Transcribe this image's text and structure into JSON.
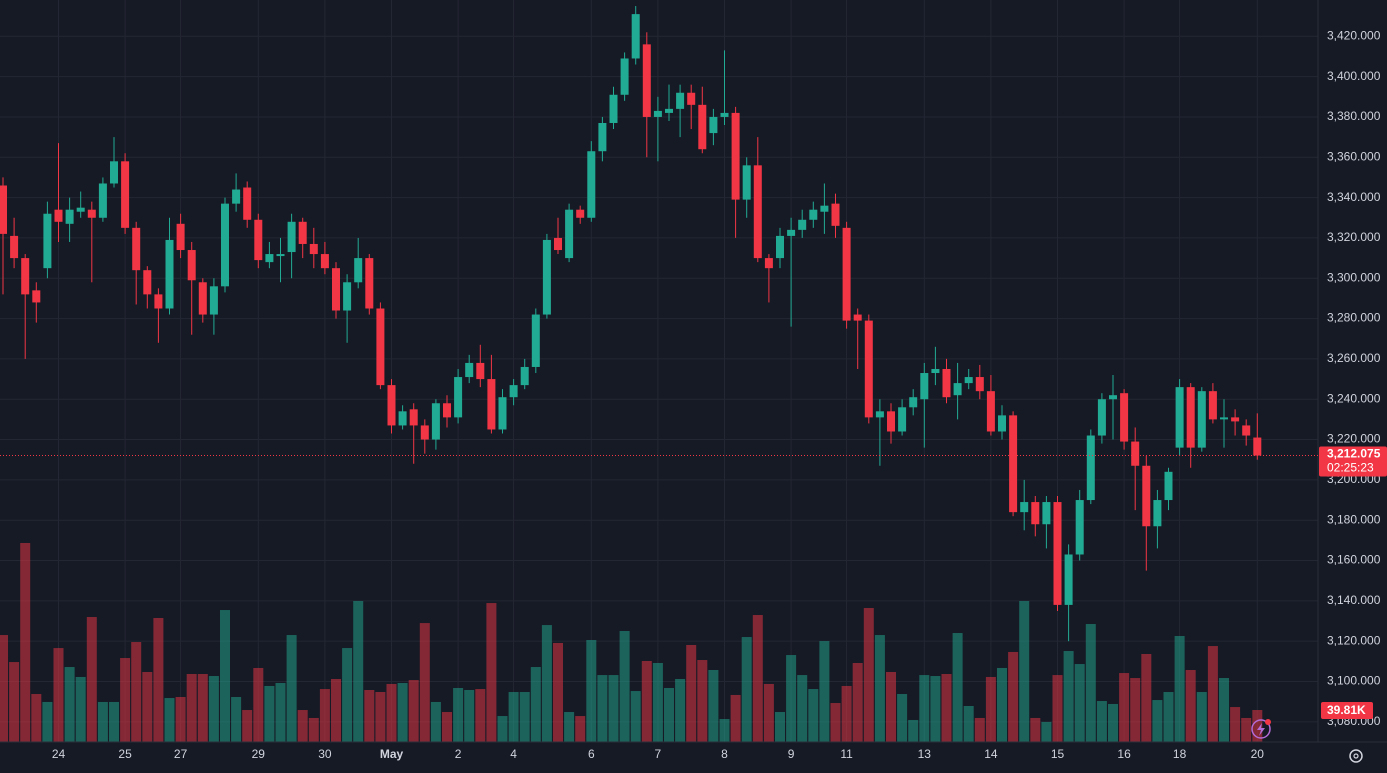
{
  "chart_data": {
    "type": "candlestick",
    "up_color": "#22ab94",
    "down_color": "#f23645",
    "grid": true,
    "categories": [
      null,
      null,
      null,
      null,
      null,
      "24",
      null,
      null,
      null,
      null,
      null,
      "25",
      null,
      null,
      null,
      null,
      "27",
      null,
      null,
      null,
      null,
      null,
      null,
      "29",
      null,
      null,
      null,
      null,
      null,
      "30",
      null,
      null,
      null,
      null,
      null,
      "May",
      null,
      null,
      null,
      null,
      null,
      "2",
      null,
      null,
      null,
      null,
      "4",
      null,
      null,
      null,
      null,
      null,
      null,
      "6",
      null,
      null,
      null,
      null,
      null,
      "7",
      null,
      null,
      null,
      null,
      null,
      "8",
      null,
      null,
      null,
      null,
      null,
      "9",
      null,
      null,
      null,
      null,
      "11",
      null,
      null,
      null,
      null,
      null,
      null,
      "13",
      null,
      null,
      null,
      null,
      null,
      "14",
      null,
      null,
      null,
      null,
      null,
      "15",
      null,
      null,
      null,
      null,
      null,
      "16",
      null,
      null,
      null,
      null,
      "18",
      null,
      null,
      null,
      null,
      null,
      null,
      "20"
    ],
    "open": [
      3346,
      3321,
      3310,
      3294,
      3305,
      3334,
      3327,
      3333,
      3334,
      3330,
      3347,
      3358,
      3325,
      3304,
      3292,
      3285,
      3327,
      3314,
      3298,
      3282,
      3296,
      3337,
      3345,
      3329,
      3308,
      3311,
      3313,
      3328,
      3317,
      3312,
      3305,
      3284,
      3298,
      3310,
      3285,
      3247,
      3227,
      3235,
      3227,
      3220,
      3238,
      3231,
      3251,
      3258,
      3250,
      3225,
      3241,
      3247,
      3256,
      3282,
      3320,
      3310,
      3334,
      3330,
      3363,
      3377,
      3391,
      3409,
      3416,
      3380,
      3382,
      3384,
      3392,
      3386,
      3372,
      3380,
      3382,
      3339,
      3356,
      3310,
      3310,
      3321,
      3324,
      3329,
      3333,
      3337,
      3325,
      3282,
      3279,
      3231,
      3234,
      3224,
      3236,
      3240,
      3253,
      3255,
      3242,
      3248,
      3251,
      3244,
      3224,
      3232,
      3184,
      3189,
      3178,
      3189,
      3138,
      3163,
      3190,
      3222,
      3240,
      3243,
      3219,
      3207,
      3177,
      3190,
      3216,
      3246,
      3216,
      3244,
      3230,
      3231,
      3227,
      3221
    ],
    "high": [
      3350,
      3330,
      3312,
      3298,
      3338,
      3367,
      3340,
      3343,
      3338,
      3350,
      3370,
      3362,
      3328,
      3306,
      3295,
      3330,
      3332,
      3318,
      3300,
      3300,
      3340,
      3352,
      3348,
      3332,
      3318,
      3320,
      3332,
      3330,
      3325,
      3318,
      3308,
      3302,
      3320,
      3312,
      3288,
      3250,
      3237,
      3238,
      3230,
      3240,
      3242,
      3255,
      3262,
      3267,
      3262,
      3245,
      3250,
      3260,
      3285,
      3322,
      3330,
      3337,
      3336,
      3368,
      3380,
      3395,
      3412,
      3435,
      3422,
      3390,
      3396,
      3396,
      3396,
      3395,
      3384,
      3413,
      3385,
      3360,
      3370,
      3312,
      3325,
      3330,
      3334,
      3338,
      3347,
      3342,
      3328,
      3285,
      3282,
      3240,
      3238,
      3240,
      3245,
      3258,
      3266,
      3260,
      3258,
      3255,
      3257,
      3252,
      3237,
      3234,
      3200,
      3192,
      3192,
      3192,
      3168,
      3195,
      3225,
      3243,
      3252,
      3245,
      3226,
      3212,
      3195,
      3206,
      3250,
      3248,
      3246,
      3248,
      3240,
      3235,
      3230,
      3233
    ],
    "low": [
      3292,
      3305,
      3260,
      3278,
      3300,
      3318,
      3318,
      3330,
      3298,
      3328,
      3345,
      3322,
      3287,
      3285,
      3268,
      3282,
      3310,
      3272,
      3278,
      3272,
      3293,
      3333,
      3325,
      3305,
      3305,
      3298,
      3300,
      3310,
      3305,
      3302,
      3280,
      3268,
      3295,
      3282,
      3245,
      3223,
      3225,
      3208,
      3213,
      3215,
      3226,
      3228,
      3248,
      3246,
      3223,
      3223,
      3237,
      3245,
      3253,
      3280,
      3312,
      3308,
      3327,
      3328,
      3358,
      3374,
      3388,
      3406,
      3360,
      3358,
      3378,
      3370,
      3374,
      3362,
      3366,
      3376,
      3320,
      3330,
      3308,
      3288,
      3305,
      3276,
      3320,
      3325,
      3322,
      3320,
      3275,
      3255,
      3228,
      3207,
      3218,
      3222,
      3232,
      3216,
      3247,
      3238,
      3230,
      3245,
      3240,
      3222,
      3220,
      3182,
      3175,
      3172,
      3166,
      3135,
      3120,
      3160,
      3188,
      3218,
      3220,
      3215,
      3185,
      3155,
      3166,
      3185,
      3212,
      3206,
      3214,
      3228,
      3216,
      3222,
      3217,
      3210
    ],
    "close": [
      3322,
      3310,
      3292,
      3288,
      3332,
      3328,
      3334,
      3335,
      3330,
      3347,
      3358,
      3325,
      3304,
      3292,
      3285,
      3319,
      3314,
      3299,
      3282,
      3296,
      3337,
      3344,
      3329,
      3309,
      3312,
      3312,
      3328,
      3317,
      3312,
      3305,
      3284,
      3298,
      3310,
      3285,
      3247,
      3227,
      3234,
      3227,
      3220,
      3238,
      3231,
      3251,
      3258,
      3250,
      3225,
      3241,
      3247,
      3256,
      3282,
      3319,
      3314,
      3334,
      3330,
      3363,
      3377,
      3391,
      3409,
      3431,
      3380,
      3383,
      3384,
      3392,
      3386,
      3364,
      3380,
      3382,
      3339,
      3356,
      3310,
      3305,
      3321,
      3324,
      3329,
      3334,
      3336,
      3326,
      3279,
      3279,
      3231,
      3234,
      3224,
      3236,
      3241,
      3253,
      3255,
      3241,
      3248,
      3251,
      3244,
      3224,
      3232,
      3184,
      3189,
      3178,
      3189,
      3138,
      3163,
      3190,
      3222,
      3240,
      3242,
      3219,
      3207,
      3177,
      3190,
      3204,
      3246,
      3216,
      3244,
      3230,
      3231,
      3229,
      3222,
      3212.075
    ],
    "volume": [
      133100,
      99500,
      247600,
      59700,
      49800,
      116900,
      93300,
      80900,
      155500,
      49800,
      49800,
      104500,
      124400,
      87100,
      154300,
      54700,
      56000,
      84600,
      84600,
      82100,
      164200,
      56000,
      39800,
      92100,
      69700,
      73400,
      133100,
      39800,
      29900,
      65900,
      78400,
      116900,
      175400,
      64700,
      62200,
      72200,
      73400,
      77100,
      148000,
      49800,
      37300,
      67200,
      64700,
      65900,
      172900,
      32300,
      62200,
      62200,
      93300,
      145500,
      123200,
      37300,
      32300,
      126900,
      83300,
      83300,
      138100,
      63400,
      100800,
      98300,
      67200,
      78400,
      120700,
      102000,
      89600,
      28600,
      58500,
      130600,
      158000,
      72200,
      37300,
      108200,
      83300,
      65900,
      125600,
      48500,
      69700,
      98300,
      166700,
      133100,
      87100,
      59700,
      27400,
      83300,
      82100,
      84600,
      135600,
      44800,
      29900,
      80900,
      92100,
      112000,
      175400,
      29900,
      24900,
      83300,
      113200,
      97000,
      146800,
      51000,
      47300,
      85800,
      79600,
      109500,
      52200,
      62200,
      131900,
      89600,
      62200,
      119400,
      79600,
      43500,
      29900,
      39810
    ],
    "last_volume_label": "39.81K",
    "last_price": {
      "value": 3212.075,
      "label": "3,212.075"
    },
    "countdown": "02:25:23",
    "ylim": [
      3070,
      3438
    ],
    "yticks": [
      {
        "value": 3080,
        "label": "3,080.000"
      },
      {
        "value": 3100,
        "label": "3,100.000"
      },
      {
        "value": 3120,
        "label": "3,120.000"
      },
      {
        "value": 3140,
        "label": "3,140.000"
      },
      {
        "value": 3160,
        "label": "3,160.000"
      },
      {
        "value": 3180,
        "label": "3,180.000"
      },
      {
        "value": 3200,
        "label": "3,200.000"
      },
      {
        "value": 3220,
        "label": "3,220.000"
      },
      {
        "value": 3240,
        "label": "3,240.000"
      },
      {
        "value": 3260,
        "label": "3,260.000"
      },
      {
        "value": 3280,
        "label": "3,280.000"
      },
      {
        "value": 3300,
        "label": "3,300.000"
      },
      {
        "value": 3320,
        "label": "3,320.000"
      },
      {
        "value": 3340,
        "label": "3,340.000"
      },
      {
        "value": 3360,
        "label": "3,360.000"
      },
      {
        "value": 3380,
        "label": "3,380.000"
      },
      {
        "value": 3400,
        "label": "3,400.000"
      },
      {
        "value": 3420,
        "label": "3,420.000"
      }
    ]
  }
}
